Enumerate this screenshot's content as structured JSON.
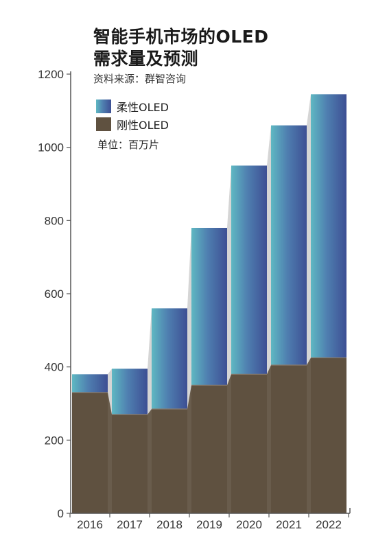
{
  "chart_data": {
    "type": "bar",
    "title_line1": "智能手机市场的OLED",
    "title_line2": "需求量及预测",
    "source": "资料来源：群智咨询",
    "unit": "单位：百万片",
    "categories": [
      "2016",
      "2017",
      "2018",
      "2019",
      "2020",
      "2021",
      "2022"
    ],
    "series": [
      {
        "name": "刚性OLED",
        "values": [
          330,
          270,
          285,
          350,
          380,
          405,
          425
        ]
      },
      {
        "name": "柔性OLED",
        "values": [
          50,
          125,
          275,
          430,
          570,
          655,
          720
        ]
      }
    ],
    "ylim": [
      0,
      1200
    ],
    "yticks": [
      0,
      200,
      400,
      600,
      800,
      1000,
      1200
    ],
    "stacked": true,
    "legend_position": "top-left",
    "grid": false
  },
  "colors": {
    "rigid": "#5f5140",
    "flexible_light": "#5fb8c2",
    "flexible_mid": "#4f7fb0",
    "flexible_dark": "#3d4f94",
    "connector": "#d5d5d5",
    "axis": "#555555"
  }
}
